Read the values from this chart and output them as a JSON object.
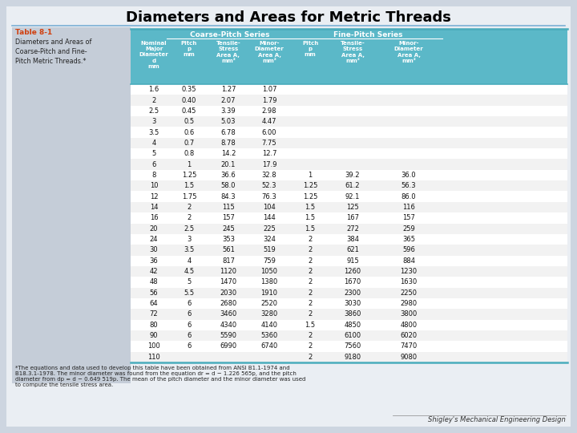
{
  "title": "Diameters and Areas for Metric Threads",
  "title_fontsize": 13,
  "subtitle_label": "Table 8-1",
  "subtitle_desc": "Diameters and Areas of\nCoarse-Pitch and Fine-\nPitch Metric Threads.*",
  "header_bg": "#5BB8C8",
  "header_text_color": "#FFFFFF",
  "table_border_color": "#4AACBC",
  "col_headers": [
    "Nominal\nMajor\nDiameter\nd\nmm",
    "Pitch\np\nmm",
    "Tensile-\nStress\nArea A,\nmm²",
    "Minor-\nDiameter\nArea A,\nmm²",
    "Pitch\np\nmm",
    "Tensile-\nStress\nArea A,\nmm²",
    "Minor-\nDiameter\nArea A,\nmm²"
  ],
  "group_headers": [
    "Coarse-Pitch Series",
    "Fine-Pitch Series"
  ],
  "rows": [
    [
      "1.6",
      "0.35",
      "1.27",
      "1.07",
      "",
      "",
      ""
    ],
    [
      "2",
      "0.40",
      "2.07",
      "1.79",
      "",
      "",
      ""
    ],
    [
      "2.5",
      "0.45",
      "3.39",
      "2.98",
      "",
      "",
      ""
    ],
    [
      "3",
      "0.5",
      "5.03",
      "4.47",
      "",
      "",
      ""
    ],
    [
      "3.5",
      "0.6",
      "6.78",
      "6.00",
      "",
      "",
      ""
    ],
    [
      "4",
      "0.7",
      "8.78",
      "7.75",
      "",
      "",
      ""
    ],
    [
      "5",
      "0.8",
      "14.2",
      "12.7",
      "",
      "",
      ""
    ],
    [
      "6",
      "1",
      "20.1",
      "17.9",
      "",
      "",
      ""
    ],
    [
      "8",
      "1.25",
      "36.6",
      "32.8",
      "1",
      "39.2",
      "36.0"
    ],
    [
      "10",
      "1.5",
      "58.0",
      "52.3",
      "1.25",
      "61.2",
      "56.3"
    ],
    [
      "12",
      "1.75",
      "84.3",
      "76.3",
      "1.25",
      "92.1",
      "86.0"
    ],
    [
      "14",
      "2",
      "115",
      "104",
      "1.5",
      "125",
      "116"
    ],
    [
      "16",
      "2",
      "157",
      "144",
      "1.5",
      "167",
      "157"
    ],
    [
      "20",
      "2.5",
      "245",
      "225",
      "1.5",
      "272",
      "259"
    ],
    [
      "24",
      "3",
      "353",
      "324",
      "2",
      "384",
      "365"
    ],
    [
      "30",
      "3.5",
      "561",
      "519",
      "2",
      "621",
      "596"
    ],
    [
      "36",
      "4",
      "817",
      "759",
      "2",
      "915",
      "884"
    ],
    [
      "42",
      "4.5",
      "1120",
      "1050",
      "2",
      "1260",
      "1230"
    ],
    [
      "48",
      "5",
      "1470",
      "1380",
      "2",
      "1670",
      "1630"
    ],
    [
      "56",
      "5.5",
      "2030",
      "1910",
      "2",
      "2300",
      "2250"
    ],
    [
      "64",
      "6",
      "2680",
      "2520",
      "2",
      "3030",
      "2980"
    ],
    [
      "72",
      "6",
      "3460",
      "3280",
      "2",
      "3860",
      "3800"
    ],
    [
      "80",
      "6",
      "4340",
      "4140",
      "1.5",
      "4850",
      "4800"
    ],
    [
      "90",
      "6",
      "5590",
      "5360",
      "2",
      "6100",
      "6020"
    ],
    [
      "100",
      "6",
      "6990",
      "6740",
      "2",
      "7560",
      "7470"
    ],
    [
      "110",
      "",
      "",
      "",
      "2",
      "9180",
      "9080"
    ]
  ],
  "footnote_line1": "*The equations and data used to develop this table have been obtained from ANSI B1.1-1974 and",
  "footnote_line2": "B18.3.1-1978. The minor diameter was found from the equation dr = d − 1.226 565p, and the pitch",
  "footnote_line3": "diameter from dp = d − 0.649 519p. The mean of the pitch diameter and the minor diameter was used",
  "footnote_line4": "to compute the tensile stress area.",
  "credit": "Shigley's Mechanical Engineering Design",
  "bg_color": "#CDD5E0",
  "left_panel_color": "#C5CDD8",
  "page_bg": "#EAEEF3"
}
